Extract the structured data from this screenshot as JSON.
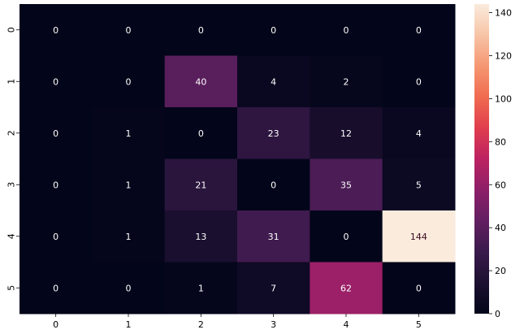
{
  "chart_data": {
    "type": "heatmap",
    "x_categories": [
      "0",
      "1",
      "2",
      "3",
      "4",
      "5"
    ],
    "y_categories": [
      "0",
      "1",
      "2",
      "3",
      "4",
      "5"
    ],
    "values": [
      [
        0,
        0,
        0,
        0,
        0,
        0
      ],
      [
        0,
        0,
        40,
        4,
        2,
        0
      ],
      [
        0,
        1,
        0,
        23,
        12,
        4
      ],
      [
        0,
        1,
        21,
        0,
        35,
        5
      ],
      [
        0,
        1,
        13,
        31,
        0,
        144
      ],
      [
        0,
        0,
        1,
        7,
        62,
        0
      ]
    ],
    "colorbar": {
      "min": 0,
      "max": 144,
      "ticks": [
        0,
        20,
        40,
        60,
        80,
        100,
        120,
        140
      ]
    },
    "colormap": "rocket",
    "grid": false,
    "legend": "colorbar-right",
    "title": "",
    "xlabel": "",
    "ylabel": ""
  }
}
